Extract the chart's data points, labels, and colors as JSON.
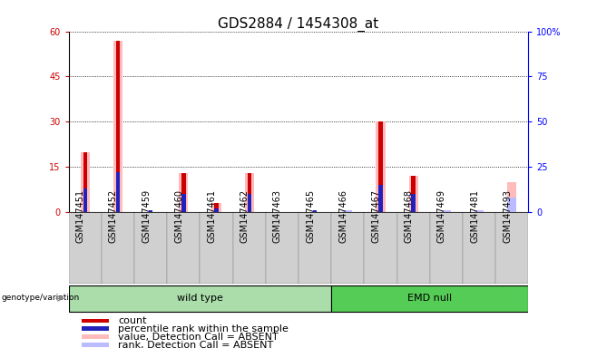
{
  "title": "GDS2884 / 1454308_at",
  "samples": [
    "GSM147451",
    "GSM147452",
    "GSM147459",
    "GSM147460",
    "GSM147461",
    "GSM147462",
    "GSM147463",
    "GSM147465",
    "GSM147466",
    "GSM147467",
    "GSM147468",
    "GSM147469",
    "GSM147481",
    "GSM147493"
  ],
  "count_values": [
    20,
    57,
    0,
    13,
    3,
    13,
    0,
    0,
    0,
    30,
    12,
    0,
    0,
    0
  ],
  "rank_values": [
    13,
    22,
    1,
    10,
    2,
    10,
    0,
    1,
    0,
    15,
    10,
    0,
    0,
    0
  ],
  "absent_value_values": [
    20,
    57,
    0,
    13,
    3,
    13,
    0,
    0,
    0,
    30,
    12,
    0,
    0,
    10
  ],
  "absent_rank_values": [
    0,
    0,
    0,
    0,
    0,
    0,
    0,
    0,
    1,
    0,
    0,
    1,
    1,
    8
  ],
  "n_wt": 8,
  "n_emd": 6,
  "left_ylim": [
    0,
    60
  ],
  "right_ylim": [
    0,
    100
  ],
  "left_yticks": [
    0,
    15,
    30,
    45,
    60
  ],
  "right_yticks": [
    0,
    25,
    50,
    75,
    100
  ],
  "right_yticklabels": [
    "0",
    "25",
    "50",
    "75",
    "100%"
  ],
  "color_count": "#cc0000",
  "color_rank": "#2222bb",
  "color_absent_value": "#ffbbbb",
  "color_absent_rank": "#bbbbff",
  "color_wt_bg": "#aaddaa",
  "color_emd_bg": "#55cc55",
  "color_sample_bg": "#d0d0d0",
  "title_fontsize": 11,
  "tick_fontsize": 7,
  "legend_fontsize": 8,
  "annotation_label_wt": "wild type",
  "annotation_label_emd": "EMD null",
  "genotype_label": "genotype/variation"
}
